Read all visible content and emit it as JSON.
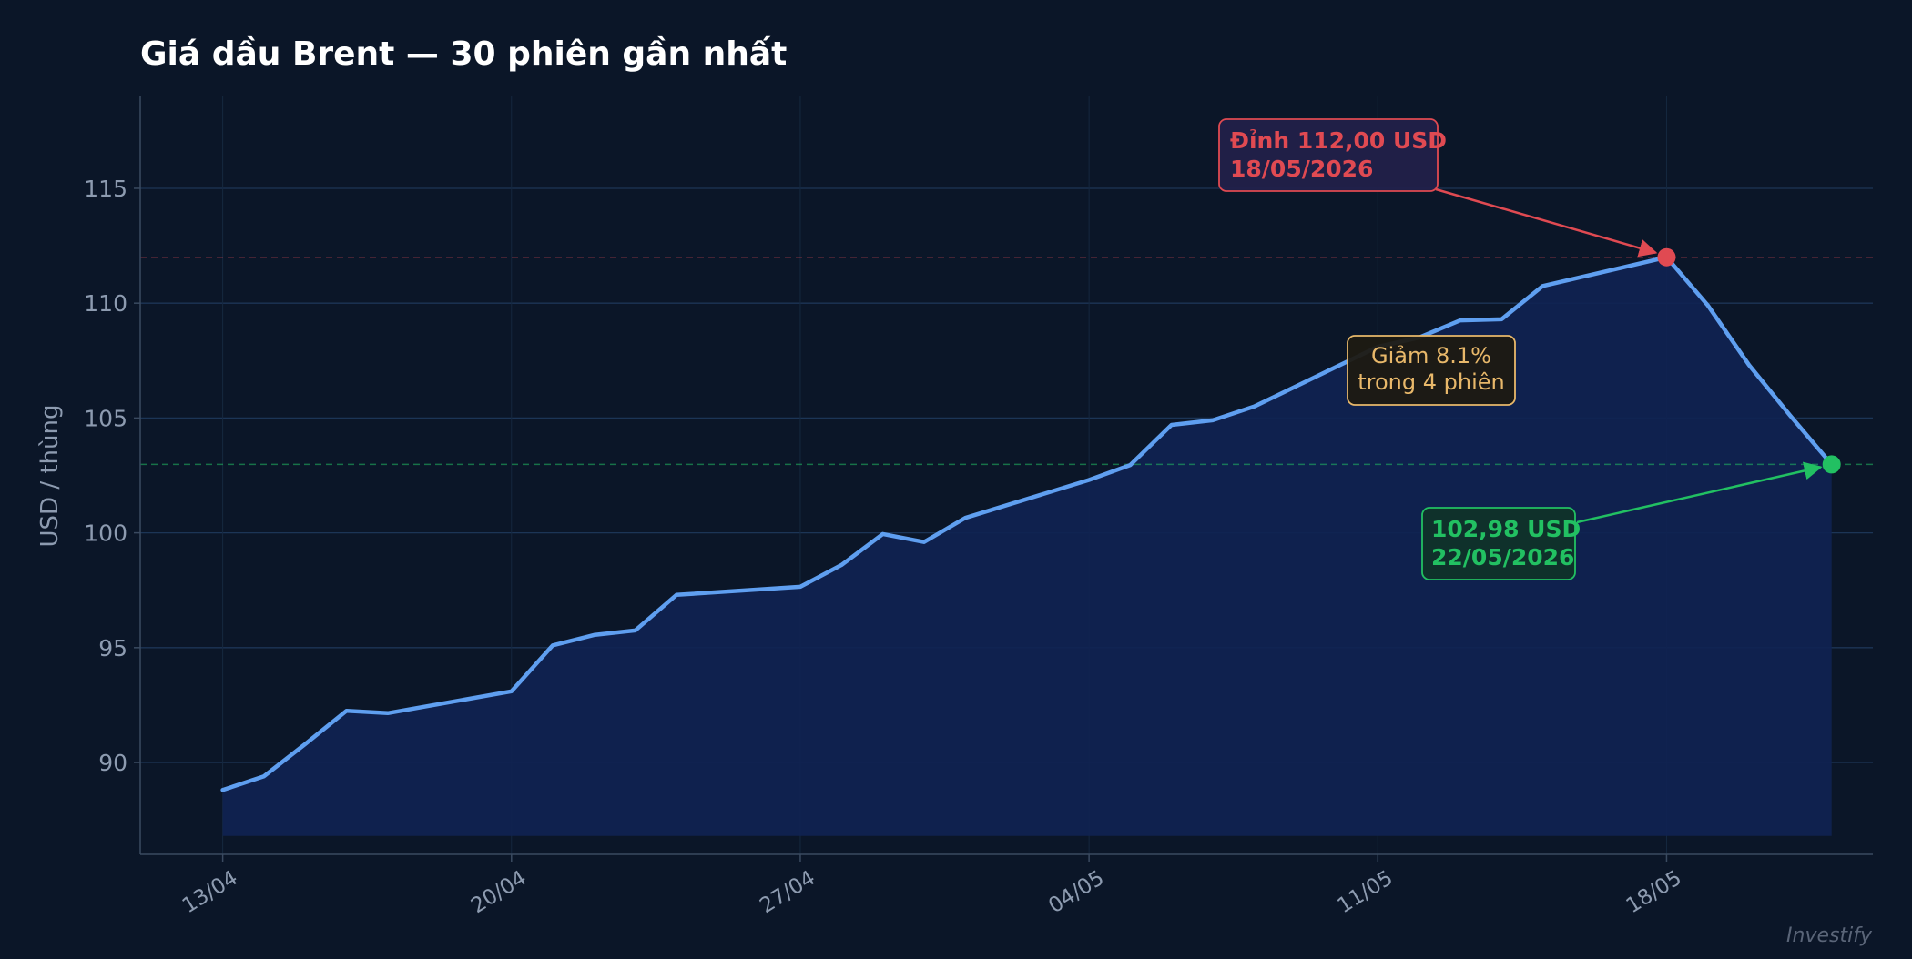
{
  "colors": {
    "background": "#0b1628",
    "line": "#5f9ff0",
    "area_fill": "#0f2252",
    "grid": "#1c3556",
    "axis": "#3a4a60",
    "tick_text": "#8d9bb0",
    "title": "#ffffff",
    "peak": "#e04a52",
    "last": "#22c062",
    "drop": "#e8b86a",
    "watermark": "#5a6578"
  },
  "watermark": "Investify",
  "chart_data": {
    "type": "area",
    "title": "Giá dầu Brent — 30 phiên gần nhất",
    "xlabel": "",
    "ylabel": "USD / thùng",
    "xlim": [
      "2026-04-11",
      "2026-05-23"
    ],
    "ylim": [
      86,
      119
    ],
    "x_ticks": [
      {
        "date": "2026-04-13",
        "label": "13/04"
      },
      {
        "date": "2026-04-20",
        "label": "20/04"
      },
      {
        "date": "2026-04-27",
        "label": "27/04"
      },
      {
        "date": "2026-05-04",
        "label": "04/05"
      },
      {
        "date": "2026-05-11",
        "label": "11/05"
      },
      {
        "date": "2026-05-18",
        "label": "18/05"
      }
    ],
    "y_ticks": [
      90,
      95,
      100,
      105,
      110,
      115
    ],
    "grid": true,
    "area_baseline": 86.8,
    "series": [
      {
        "x": [
          "2026-04-13",
          "2026-04-14",
          "2026-04-15",
          "2026-04-16",
          "2026-04-17",
          "2026-04-20",
          "2026-04-21",
          "2026-04-22",
          "2026-04-23",
          "2026-04-24",
          "2026-04-27",
          "2026-04-28",
          "2026-04-29",
          "2026-04-30",
          "2026-05-01",
          "2026-05-04",
          "2026-05-05",
          "2026-05-06",
          "2026-05-07",
          "2026-05-08",
          "2026-05-11",
          "2026-05-12",
          "2026-05-13",
          "2026-05-14",
          "2026-05-15",
          "2026-05-18",
          "2026-05-19",
          "2026-05-20",
          "2026-05-21",
          "2026-05-22"
        ],
        "values": [
          88.8,
          89.4,
          90.8,
          92.25,
          92.15,
          93.1,
          95.1,
          95.55,
          95.75,
          97.3,
          97.65,
          98.6,
          99.95,
          99.6,
          100.65,
          102.3,
          102.95,
          104.7,
          104.9,
          105.5,
          108.1,
          108.5,
          109.25,
          109.3,
          110.75,
          112.0,
          109.9,
          107.3,
          105.1,
          102.98
        ]
      }
    ],
    "reference_lines": [
      {
        "y": 112.0,
        "color": "#e04a52",
        "style": "dashed"
      },
      {
        "y": 102.98,
        "color": "#22c062",
        "style": "dashed"
      }
    ],
    "annotations": [
      {
        "name": "peak",
        "x": "2026-05-18",
        "y": 112.0,
        "lines": [
          "Đỉnh 112,00 USD",
          "18/05/2026"
        ]
      },
      {
        "name": "last",
        "x": "2026-05-22",
        "y": 102.98,
        "lines": [
          "102,98 USD",
          "22/05/2026"
        ]
      },
      {
        "name": "drop",
        "lines": [
          "Giảm 8.1%",
          "trong 4 phiên"
        ]
      }
    ]
  }
}
